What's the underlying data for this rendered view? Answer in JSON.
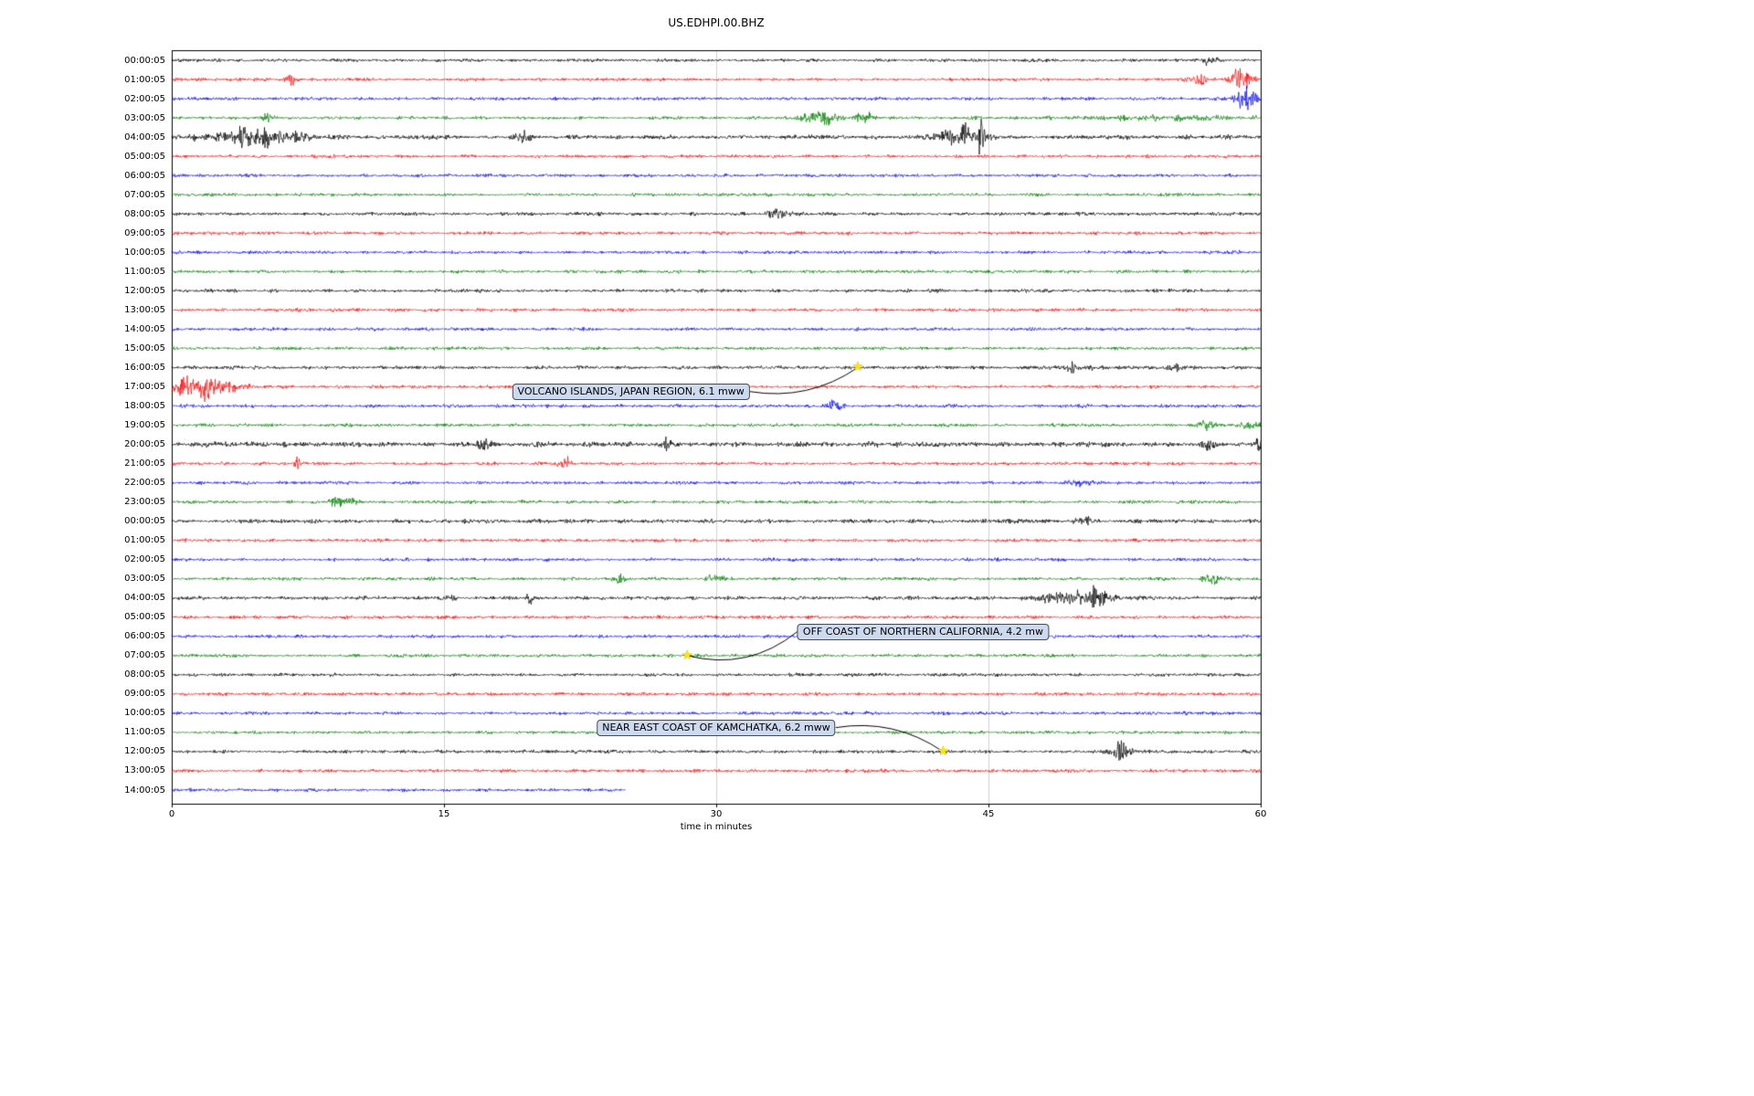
{
  "chart_data": {
    "type": "line",
    "subtype": "seismogram-helicorder",
    "title": "US.EDHPI.00.BHZ",
    "xlabel": "time in minutes",
    "xlim": [
      0,
      60
    ],
    "x_ticks": [
      0,
      15,
      30,
      45,
      60
    ],
    "grid": "vertical",
    "trace_color_cycle": [
      "#000000",
      "#ff0000",
      "#0000ff",
      "#008000"
    ],
    "rows": [
      {
        "label": "00:00:05",
        "bursts": [
          [
            57.2,
            0.3,
            4
          ]
        ]
      },
      {
        "label": "01:00:05",
        "bursts": [
          [
            6.5,
            0.25,
            3
          ],
          [
            56.3,
            0.4,
            5
          ],
          [
            59.0,
            0.5,
            6
          ]
        ]
      },
      {
        "label": "02:00:05",
        "bursts": [
          [
            59.2,
            0.4,
            6
          ]
        ]
      },
      {
        "label": "03:00:05",
        "bursts": [
          [
            5.3,
            0.25,
            3
          ],
          [
            35.8,
            0.6,
            5
          ],
          [
            38.2,
            0.35,
            3
          ],
          [
            54.0,
            4.0,
            1.2
          ]
        ]
      },
      {
        "label": "04:00:05",
        "noise": 1.35,
        "bursts": [
          [
            4.5,
            1.6,
            4
          ],
          [
            19.5,
            0.3,
            2.5
          ],
          [
            43.6,
            1.0,
            5
          ],
          [
            44.6,
            0.12,
            14
          ]
        ]
      },
      {
        "label": "05:00:05"
      },
      {
        "label": "06:00:05"
      },
      {
        "label": "07:00:05"
      },
      {
        "label": "08:00:05",
        "noise": 1.1,
        "bursts": [
          [
            33.4,
            0.35,
            4
          ]
        ]
      },
      {
        "label": "09:00:05"
      },
      {
        "label": "10:00:05"
      },
      {
        "label": "11:00:05"
      },
      {
        "label": "12:00:05",
        "noise": 1.05
      },
      {
        "label": "13:00:05"
      },
      {
        "label": "14:00:05"
      },
      {
        "label": "15:00:05"
      },
      {
        "label": "16:00:05",
        "noise": 1.1,
        "bursts": [
          [
            49.8,
            0.7,
            2
          ],
          [
            55.2,
            0.3,
            1.8
          ]
        ]
      },
      {
        "label": "17:00:05",
        "bursts": [
          [
            1.1,
            0.7,
            8
          ],
          [
            2.6,
            1.2,
            2.5
          ]
        ]
      },
      {
        "label": "18:00:05",
        "bursts": [
          [
            36.5,
            0.4,
            2.5
          ]
        ]
      },
      {
        "label": "19:00:05",
        "bursts": [
          [
            57.0,
            0.35,
            2.5
          ],
          [
            59.4,
            0.35,
            3
          ]
        ]
      },
      {
        "label": "20:00:05",
        "noise": 1.5,
        "bursts": [
          [
            17.2,
            0.25,
            2
          ],
          [
            27.3,
            0.25,
            2
          ],
          [
            57.2,
            0.25,
            2.5
          ],
          [
            59.9,
            0.15,
            4
          ]
        ]
      },
      {
        "label": "21:00:05",
        "bursts": [
          [
            6.9,
            0.12,
            9
          ],
          [
            21.7,
            0.25,
            3
          ]
        ]
      },
      {
        "label": "22:00:05",
        "bursts": [
          [
            50.0,
            0.45,
            3.5
          ]
        ]
      },
      {
        "label": "23:00:05",
        "bursts": [
          [
            9.1,
            0.25,
            2.5
          ],
          [
            9.9,
            0.35,
            3.5
          ]
        ]
      },
      {
        "label": "00:00:05",
        "noise": 1.25,
        "bursts": [
          [
            50.2,
            0.35,
            2.5
          ]
        ]
      },
      {
        "label": "01:00:05"
      },
      {
        "label": "02:00:05"
      },
      {
        "label": "03:00:05",
        "bursts": [
          [
            24.7,
            0.3,
            3
          ],
          [
            29.9,
            0.35,
            3
          ],
          [
            57.4,
            0.35,
            3
          ]
        ]
      },
      {
        "label": "04:00:05",
        "noise": 1.15,
        "bursts": [
          [
            15.3,
            0.18,
            2.5
          ],
          [
            19.8,
            0.18,
            2.5
          ],
          [
            49.7,
            1.2,
            4
          ],
          [
            51.0,
            0.4,
            5
          ]
        ]
      },
      {
        "label": "05:00:05"
      },
      {
        "label": "06:00:05"
      },
      {
        "label": "07:00:05"
      },
      {
        "label": "08:00:05"
      },
      {
        "label": "09:00:05"
      },
      {
        "label": "10:00:05"
      },
      {
        "label": "11:00:05"
      },
      {
        "label": "12:00:05",
        "noise": 1.05,
        "bursts": [
          [
            52.3,
            0.45,
            5
          ]
        ]
      },
      {
        "label": "13:00:05"
      },
      {
        "label": "14:00:05",
        "end_minute": 25
      }
    ],
    "events": [
      {
        "label": "VOLCANO ISLANDS, JAPAN REGION, 6.1 mww",
        "star": {
          "row": 16,
          "minute": 37.8
        },
        "box": {
          "row": 17.25,
          "minute": 25.3
        },
        "curve": 0.2
      },
      {
        "label": "OFF COAST OF NORTHERN CALIFORNIA, 4.2 mw",
        "star": {
          "row": 31,
          "minute": 28.4
        },
        "box": {
          "row": 29.75,
          "minute": 41.4
        },
        "curve": -0.25
      },
      {
        "label": "NEAR EAST COAST OF KAMCHATKA, 6.2 mww",
        "star": {
          "row": 36,
          "minute": 42.5
        },
        "box": {
          "row": 34.75,
          "minute": 30.0
        },
        "curve": -0.2
      }
    ],
    "style": {
      "grid_color": "#d0d0d0",
      "frame_color": "#000000",
      "event_box_fill": "#ccd9ee",
      "event_star_color": "#ffe600"
    }
  }
}
